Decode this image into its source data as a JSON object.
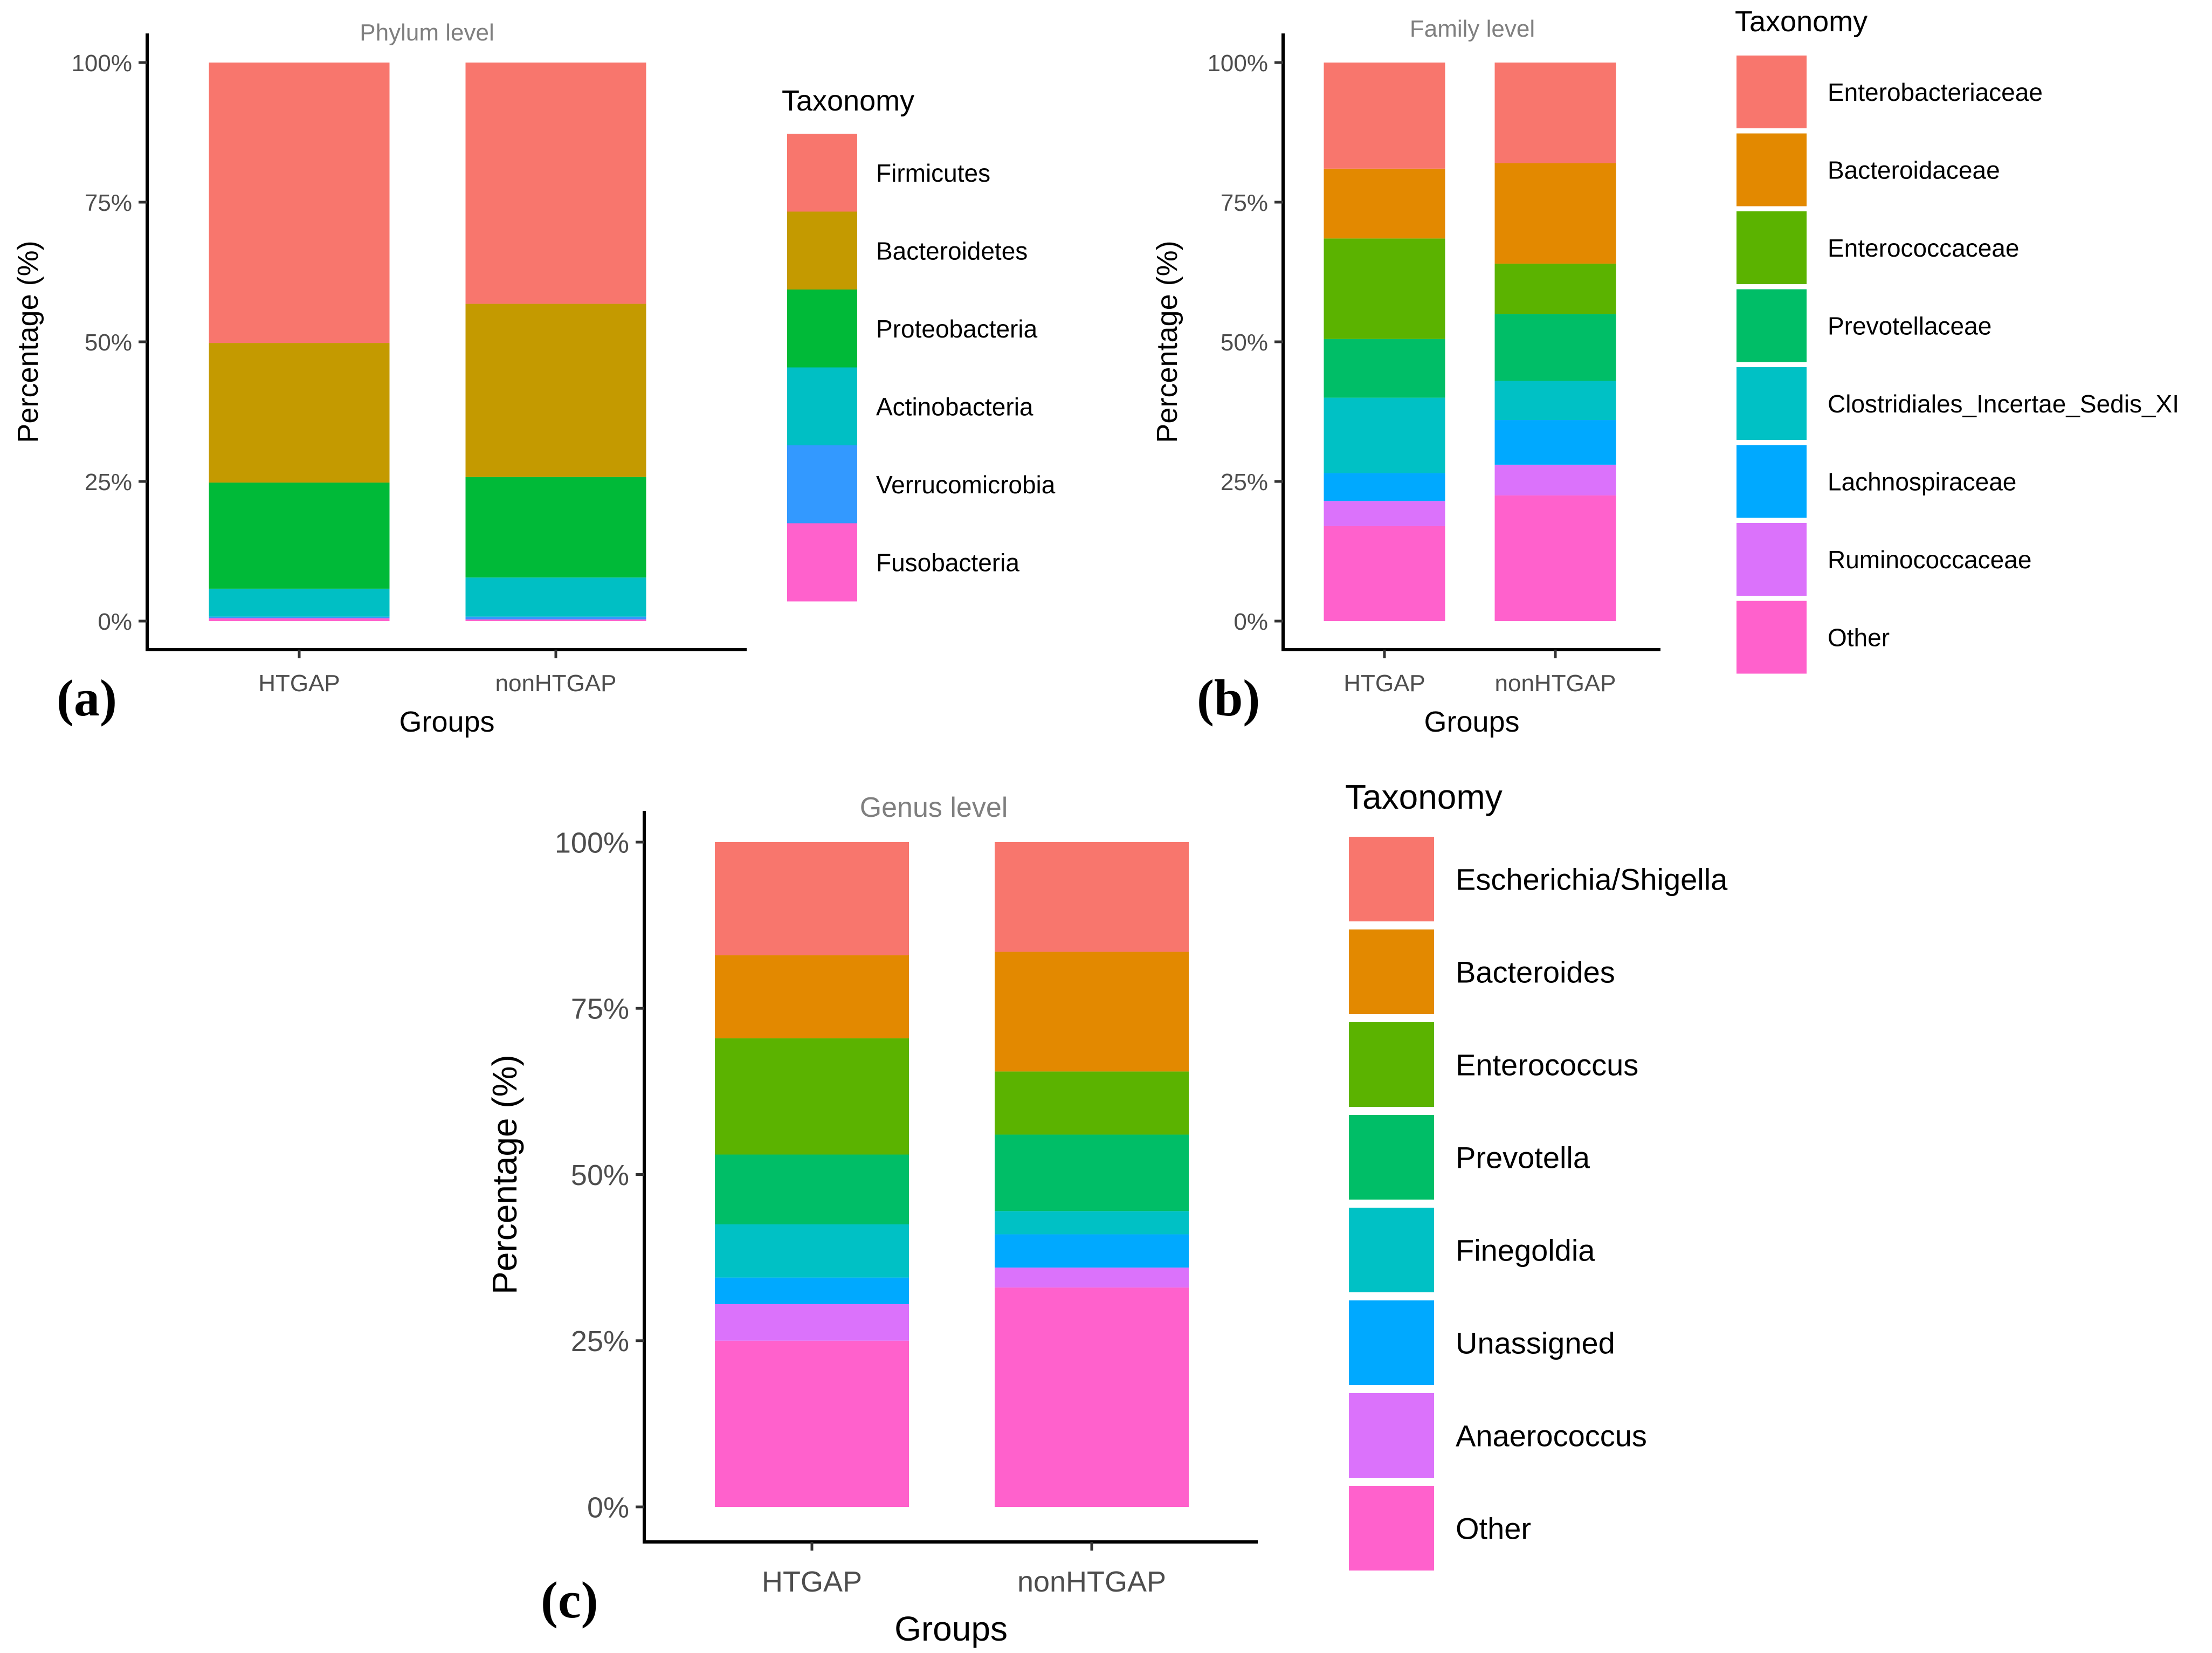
{
  "figure_labels": [
    "(a)",
    "(b)",
    "(c)"
  ],
  "chart_data": [
    {
      "type": "bar",
      "stacked": true,
      "title": "Phylum level",
      "xlabel": "Groups",
      "ylabel": "Percentage (%)",
      "ylim": [
        0,
        100
      ],
      "yticks": [
        "0%",
        "25%",
        "50%",
        "75%",
        "100%"
      ],
      "categories": [
        "HTGAP",
        "nonHTGAP"
      ],
      "legend_title": "Taxonomy",
      "series": [
        {
          "name": "Fusobacteria",
          "color": "#FF61CC",
          "values": [
            0.5,
            0.3
          ]
        },
        {
          "name": "Verrucomicrobia",
          "color": "#3399FF",
          "values": [
            0.3,
            0.5
          ]
        },
        {
          "name": "Actinobacteria",
          "color": "#00BFC4",
          "values": [
            5.0,
            7.0
          ]
        },
        {
          "name": "Proteobacteria",
          "color": "#00BA38",
          "values": [
            19.0,
            18.0
          ]
        },
        {
          "name": "Bacteroidetes",
          "color": "#C49A00",
          "values": [
            25.0,
            31.0
          ]
        },
        {
          "name": "Firmicutes",
          "color": "#F8766D",
          "values": [
            50.2,
            43.2
          ]
        }
      ]
    },
    {
      "type": "bar",
      "stacked": true,
      "title": "Family level",
      "xlabel": "Groups",
      "ylabel": "Percentage (%)",
      "ylim": [
        0,
        100
      ],
      "yticks": [
        "0%",
        "25%",
        "50%",
        "75%",
        "100%"
      ],
      "categories": [
        "HTGAP",
        "nonHTGAP"
      ],
      "legend_title": "Taxonomy",
      "series": [
        {
          "name": "Other",
          "color": "#FF61CC",
          "values": [
            17.0,
            22.5
          ]
        },
        {
          "name": "Ruminococcaceae",
          "color": "#DB72FB",
          "values": [
            4.5,
            5.5
          ]
        },
        {
          "name": "Lachnospiraceae",
          "color": "#00A9FF",
          "values": [
            5.0,
            8.0
          ]
        },
        {
          "name": "Clostridiales_Incertae_Sedis_XI",
          "color": "#00C1C5",
          "values": [
            13.5,
            7.0
          ]
        },
        {
          "name": "Prevotellaceae",
          "color": "#00BE67",
          "values": [
            10.5,
            12.0
          ]
        },
        {
          "name": "Enterococcaceae",
          "color": "#5BB300",
          "values": [
            18.0,
            9.0
          ]
        },
        {
          "name": "Bacteroidaceae",
          "color": "#E38900",
          "values": [
            12.5,
            18.0
          ]
        },
        {
          "name": "Enterobacteriaceae",
          "color": "#F8766D",
          "values": [
            19.0,
            18.0
          ]
        }
      ]
    },
    {
      "type": "bar",
      "stacked": true,
      "title": "Genus level",
      "xlabel": "Groups",
      "ylabel": "Percentage (%)",
      "ylim": [
        0,
        100
      ],
      "yticks": [
        "0%",
        "25%",
        "50%",
        "75%",
        "100%"
      ],
      "categories": [
        "HTGAP",
        "nonHTGAP"
      ],
      "legend_title": "Taxonomy",
      "series": [
        {
          "name": "Other",
          "color": "#FF61CC",
          "values": [
            25.0,
            33.0
          ]
        },
        {
          "name": "Anaerococcus",
          "color": "#DB72FB",
          "values": [
            5.5,
            3.0
          ]
        },
        {
          "name": "Unassigned",
          "color": "#00A9FF",
          "values": [
            4.0,
            5.0
          ]
        },
        {
          "name": "Finegoldia",
          "color": "#00C1C5",
          "values": [
            8.0,
            3.5
          ]
        },
        {
          "name": "Prevotella",
          "color": "#00BE67",
          "values": [
            10.5,
            11.5
          ]
        },
        {
          "name": "Enterococcus",
          "color": "#5BB300",
          "values": [
            17.5,
            9.5
          ]
        },
        {
          "name": "Bacteroides",
          "color": "#E38900",
          "values": [
            12.5,
            18.0
          ]
        },
        {
          "name": "Escherichia/Shigella",
          "color": "#F8766D",
          "values": [
            17.0,
            16.5
          ]
        }
      ]
    }
  ]
}
